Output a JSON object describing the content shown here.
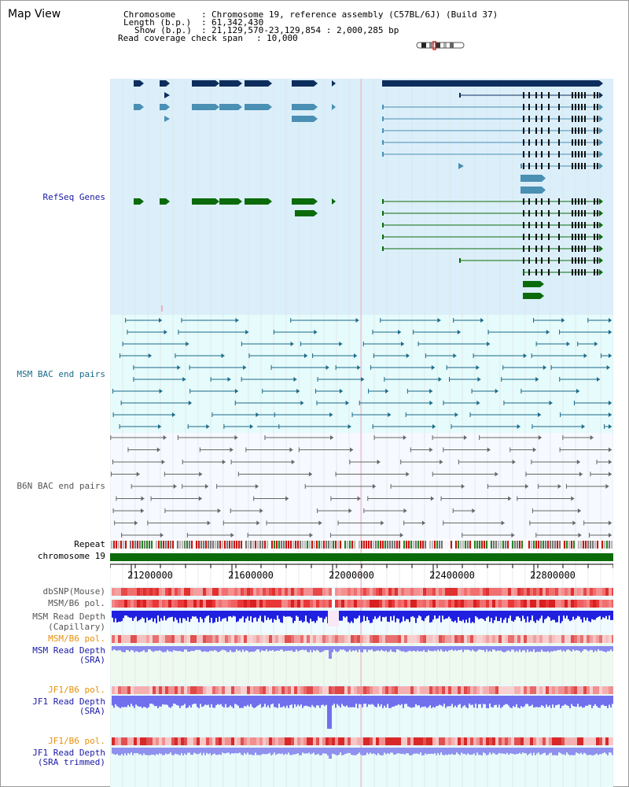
{
  "title": "Map View",
  "info": {
    "chromosome_key": "Chromosome",
    "chromosome_val": "Chromosome 19, reference assembly (C57BL/6J) (Build 37)",
    "length_key": "Length (b.p.)",
    "length_val": "61,342,430",
    "show_key": "Show (b.p.)",
    "show_val": "21,129,570-23,129,854 : 2,000,285 bp",
    "coverage_key": "Read coverage check span",
    "coverage_val": "10,000"
  },
  "tracks": {
    "refseq": "RefSeq Genes",
    "msm_bac": "MSM BAC end pairs",
    "b6n_bac": "B6N BAC end pairs",
    "repeat": "Repeat",
    "chromosome": "chromosome 19",
    "dbsnp": "dbSNP(Mouse)",
    "msm_pol_1": "MSM/B6 pol.",
    "msm_depth_cap_1": "MSM Read Depth",
    "msm_depth_cap_2": "(Capillary)",
    "msm_pol_2": "MSM/B6 pol.",
    "msm_depth_sra_1": "MSM Read Depth",
    "msm_depth_sra_2": "(SRA)",
    "jf1_pol_1": "JF1/B6 pol.",
    "jf1_depth_sra_1": "JF1 Read Depth",
    "jf1_depth_sra_2": "(SRA)",
    "jf1_pol_2": "JF1/B6 pol.",
    "jf1_depth_trim_1": "JF1 Read Depth",
    "jf1_depth_trim_2": "(SRA trimmed)"
  },
  "axis": {
    "ticks": [
      "21200000",
      "21600000",
      "22000000",
      "22400000",
      "22800000"
    ]
  },
  "colors": {
    "refseq_bg": "#dbeffa",
    "bac_bg": "#e6fbfb",
    "navy": "#0d2d5c",
    "steel": "#4a8fb4",
    "green": "#0b6b0b",
    "msm_line": "#1a6a8a",
    "b6n_line": "#666666",
    "label_blue": "#1a1aa8",
    "label_orange": "#e6900a",
    "label_gray": "#555555"
  }
}
